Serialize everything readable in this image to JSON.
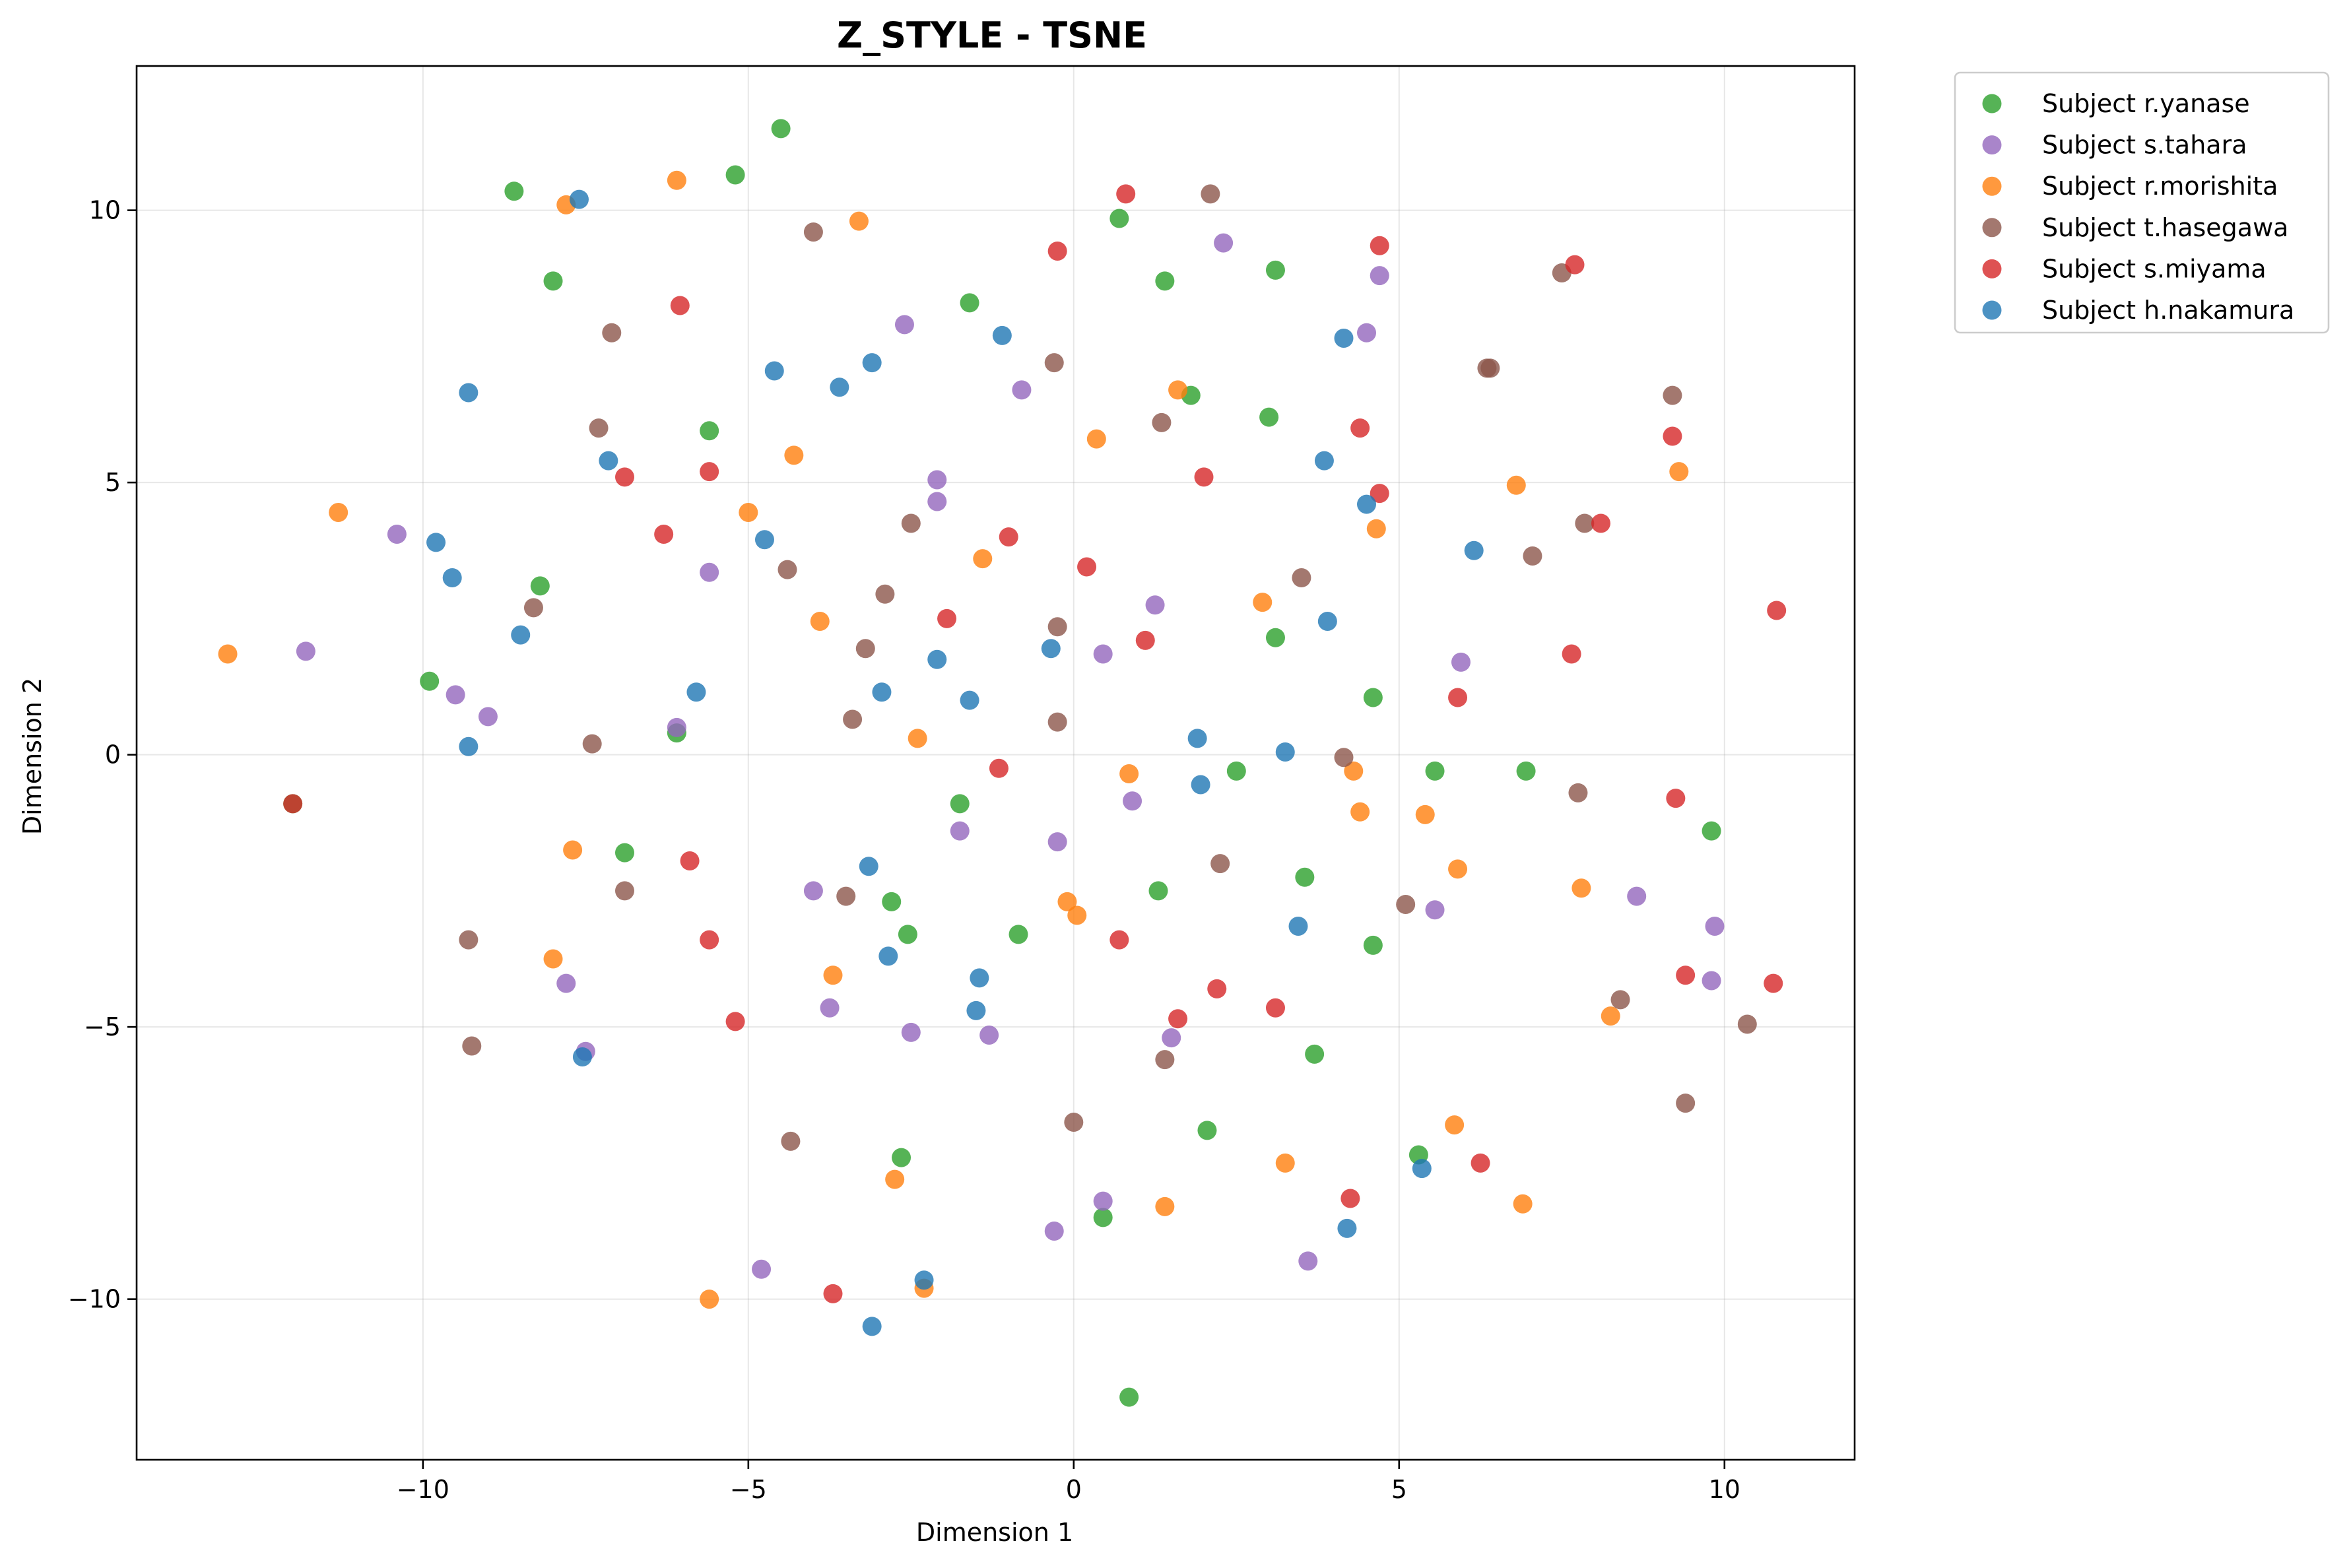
{
  "chart_data": {
    "type": "scatter",
    "title": "Z_STYLE - TSNE",
    "xlabel": "Dimension 1",
    "ylabel": "Dimension 2",
    "xlim": [
      -14.4,
      12.0
    ],
    "ylim": [
      -12.95,
      12.65
    ],
    "xticks": [
      -10,
      -5,
      0,
      5,
      10
    ],
    "xtick_labels": [
      "−10",
      "−5",
      "0",
      "5",
      "10"
    ],
    "yticks": [
      -10,
      -5,
      0,
      5,
      10
    ],
    "ytick_labels": [
      "−10",
      "−5",
      "0",
      "5",
      "10"
    ],
    "grid": true,
    "legend_position": "outside top-right",
    "series": [
      {
        "name": "Subject r.yanase",
        "color": "#2ca02c",
        "points": [
          [
            -8.6,
            10.35
          ],
          [
            -5.2,
            10.65
          ],
          [
            -4.5,
            11.5
          ],
          [
            -8.0,
            8.7
          ],
          [
            0.7,
            9.85
          ],
          [
            1.4,
            8.7
          ],
          [
            3.1,
            8.9
          ],
          [
            -1.6,
            8.3
          ],
          [
            -5.6,
            5.95
          ],
          [
            1.8,
            6.6
          ],
          [
            3.0,
            6.2
          ],
          [
            -8.2,
            3.1
          ],
          [
            -9.9,
            1.35
          ],
          [
            3.1,
            2.15
          ],
          [
            4.6,
            1.05
          ],
          [
            -6.1,
            0.4
          ],
          [
            -12.0,
            -0.9
          ],
          [
            -6.9,
            -1.8
          ],
          [
            -1.75,
            -0.9
          ],
          [
            2.5,
            -0.3
          ],
          [
            5.55,
            -0.3
          ],
          [
            6.95,
            -0.3
          ],
          [
            9.8,
            -1.4
          ],
          [
            -2.8,
            -2.7
          ],
          [
            1.3,
            -2.5
          ],
          [
            3.55,
            -2.25
          ],
          [
            -2.55,
            -3.3
          ],
          [
            -0.85,
            -3.3
          ],
          [
            4.6,
            -3.5
          ],
          [
            3.7,
            -5.5
          ],
          [
            2.05,
            -6.9
          ],
          [
            -2.65,
            -7.4
          ],
          [
            5.3,
            -7.35
          ],
          [
            0.45,
            -8.5
          ],
          [
            0.85,
            -11.8
          ]
        ]
      },
      {
        "name": "Subject s.tahara",
        "color": "#9467bd",
        "points": [
          [
            2.3,
            9.4
          ],
          [
            4.7,
            8.8
          ],
          [
            -2.6,
            7.9
          ],
          [
            4.5,
            7.75
          ],
          [
            -0.8,
            6.7
          ],
          [
            -2.1,
            5.05
          ],
          [
            -2.1,
            4.65
          ],
          [
            -10.4,
            4.05
          ],
          [
            -5.6,
            3.35
          ],
          [
            1.25,
            2.75
          ],
          [
            -11.8,
            1.9
          ],
          [
            0.45,
            1.85
          ],
          [
            5.95,
            1.7
          ],
          [
            -9.5,
            1.1
          ],
          [
            -9.0,
            0.7
          ],
          [
            -6.1,
            0.5
          ],
          [
            0.9,
            -0.85
          ],
          [
            -1.75,
            -1.4
          ],
          [
            -0.25,
            -1.6
          ],
          [
            -4.0,
            -2.5
          ],
          [
            8.65,
            -2.6
          ],
          [
            5.55,
            -2.85
          ],
          [
            9.85,
            -3.15
          ],
          [
            -7.8,
            -4.2
          ],
          [
            9.8,
            -4.15
          ],
          [
            -3.75,
            -4.65
          ],
          [
            -2.5,
            -5.1
          ],
          [
            -1.3,
            -5.15
          ],
          [
            1.5,
            -5.2
          ],
          [
            -7.5,
            -5.45
          ],
          [
            0.45,
            -8.2
          ],
          [
            -0.3,
            -8.75
          ],
          [
            3.6,
            -9.3
          ],
          [
            -4.8,
            -9.45
          ]
        ]
      },
      {
        "name": "Subject r.morishita",
        "color": "#ff7f0e",
        "points": [
          [
            -7.8,
            10.1
          ],
          [
            -6.1,
            10.55
          ],
          [
            -3.3,
            9.8
          ],
          [
            1.6,
            6.7
          ],
          [
            0.35,
            5.8
          ],
          [
            -4.3,
            5.5
          ],
          [
            6.8,
            4.95
          ],
          [
            9.3,
            5.2
          ],
          [
            -11.3,
            4.45
          ],
          [
            -5.0,
            4.45
          ],
          [
            4.65,
            4.15
          ],
          [
            -1.4,
            3.6
          ],
          [
            -3.9,
            2.45
          ],
          [
            2.9,
            2.8
          ],
          [
            -13.0,
            1.85
          ],
          [
            -2.4,
            0.3
          ],
          [
            0.85,
            -0.35
          ],
          [
            4.3,
            -0.3
          ],
          [
            4.4,
            -1.05
          ],
          [
            5.4,
            -1.1
          ],
          [
            -7.7,
            -1.75
          ],
          [
            5.9,
            -2.1
          ],
          [
            7.8,
            -2.45
          ],
          [
            -0.1,
            -2.7
          ],
          [
            0.05,
            -2.95
          ],
          [
            -8.0,
            -3.75
          ],
          [
            -3.7,
            -4.05
          ],
          [
            8.25,
            -4.8
          ],
          [
            5.85,
            -6.8
          ],
          [
            3.25,
            -7.5
          ],
          [
            -2.75,
            -7.8
          ],
          [
            1.4,
            -8.3
          ],
          [
            6.9,
            -8.25
          ],
          [
            -2.3,
            -9.8
          ],
          [
            -5.6,
            -10.0
          ]
        ]
      },
      {
        "name": "Subject t.hasegawa",
        "color": "#8c564b",
        "points": [
          [
            2.1,
            10.3
          ],
          [
            -4.0,
            9.6
          ],
          [
            7.5,
            8.85
          ],
          [
            -7.1,
            7.75
          ],
          [
            -0.3,
            7.2
          ],
          [
            6.35,
            7.1
          ],
          [
            6.4,
            7.1
          ],
          [
            -7.3,
            6.0
          ],
          [
            1.35,
            6.1
          ],
          [
            9.2,
            6.6
          ],
          [
            -2.5,
            4.25
          ],
          [
            7.85,
            4.25
          ],
          [
            -4.4,
            3.4
          ],
          [
            3.5,
            3.25
          ],
          [
            7.05,
            3.65
          ],
          [
            -8.3,
            2.7
          ],
          [
            -2.9,
            2.95
          ],
          [
            -0.25,
            2.35
          ],
          [
            -3.2,
            1.95
          ],
          [
            -3.4,
            0.65
          ],
          [
            -0.25,
            0.6
          ],
          [
            -7.4,
            0.2
          ],
          [
            4.15,
            -0.05
          ],
          [
            7.75,
            -0.7
          ],
          [
            2.25,
            -2.0
          ],
          [
            -6.9,
            -2.5
          ],
          [
            -3.5,
            -2.6
          ],
          [
            5.1,
            -2.75
          ],
          [
            -9.3,
            -3.4
          ],
          [
            8.4,
            -4.5
          ],
          [
            10.35,
            -4.95
          ],
          [
            -9.25,
            -5.35
          ],
          [
            1.4,
            -5.6
          ],
          [
            9.4,
            -6.4
          ],
          [
            0.0,
            -6.75
          ],
          [
            -4.35,
            -7.1
          ]
        ]
      },
      {
        "name": "Subject s.miyama",
        "color": "#d62728",
        "points": [
          [
            0.8,
            10.3
          ],
          [
            -0.25,
            9.25
          ],
          [
            4.7,
            9.35
          ],
          [
            7.7,
            9.0
          ],
          [
            -6.05,
            8.25
          ],
          [
            4.4,
            6.0
          ],
          [
            9.2,
            5.85
          ],
          [
            -6.9,
            5.1
          ],
          [
            -5.6,
            5.2
          ],
          [
            2.0,
            5.1
          ],
          [
            4.7,
            4.8
          ],
          [
            -6.3,
            4.05
          ],
          [
            -1.0,
            4.0
          ],
          [
            8.1,
            4.25
          ],
          [
            0.2,
            3.45
          ],
          [
            10.8,
            2.65
          ],
          [
            -1.95,
            2.5
          ],
          [
            1.1,
            2.1
          ],
          [
            7.65,
            1.85
          ],
          [
            5.9,
            1.05
          ],
          [
            -12.0,
            -0.9
          ],
          [
            -1.15,
            -0.25
          ],
          [
            9.25,
            -0.8
          ],
          [
            -5.9,
            -1.95
          ],
          [
            -5.6,
            -3.4
          ],
          [
            0.7,
            -3.4
          ],
          [
            9.4,
            -4.05
          ],
          [
            10.75,
            -4.2
          ],
          [
            2.2,
            -4.3
          ],
          [
            3.1,
            -4.65
          ],
          [
            1.6,
            -4.85
          ],
          [
            -5.2,
            -4.9
          ],
          [
            6.25,
            -7.5
          ],
          [
            4.25,
            -8.15
          ],
          [
            -3.7,
            -9.9
          ]
        ]
      },
      {
        "name": "Subject h.nakamura",
        "color": "#1f77b4",
        "points": [
          [
            -7.6,
            10.2
          ],
          [
            -1.1,
            7.7
          ],
          [
            4.15,
            7.65
          ],
          [
            -4.6,
            7.05
          ],
          [
            -3.1,
            7.2
          ],
          [
            -3.6,
            6.75
          ],
          [
            -9.3,
            6.65
          ],
          [
            -7.15,
            5.4
          ],
          [
            3.85,
            5.4
          ],
          [
            4.5,
            4.6
          ],
          [
            -9.8,
            3.9
          ],
          [
            -4.75,
            3.95
          ],
          [
            6.15,
            3.75
          ],
          [
            -9.55,
            3.25
          ],
          [
            3.9,
            2.45
          ],
          [
            -8.5,
            2.2
          ],
          [
            -0.35,
            1.95
          ],
          [
            -2.1,
            1.75
          ],
          [
            -5.8,
            1.15
          ],
          [
            -2.95,
            1.15
          ],
          [
            -1.6,
            1.0
          ],
          [
            1.9,
            0.3
          ],
          [
            3.25,
            0.05
          ],
          [
            -9.3,
            0.15
          ],
          [
            1.95,
            -0.55
          ],
          [
            -3.15,
            -2.05
          ],
          [
            3.45,
            -3.15
          ],
          [
            -2.85,
            -3.7
          ],
          [
            -1.45,
            -4.1
          ],
          [
            -1.5,
            -4.7
          ],
          [
            -7.55,
            -5.55
          ],
          [
            5.35,
            -7.6
          ],
          [
            4.2,
            -8.7
          ],
          [
            -2.3,
            -9.65
          ],
          [
            -3.1,
            -10.5
          ]
        ]
      }
    ]
  }
}
